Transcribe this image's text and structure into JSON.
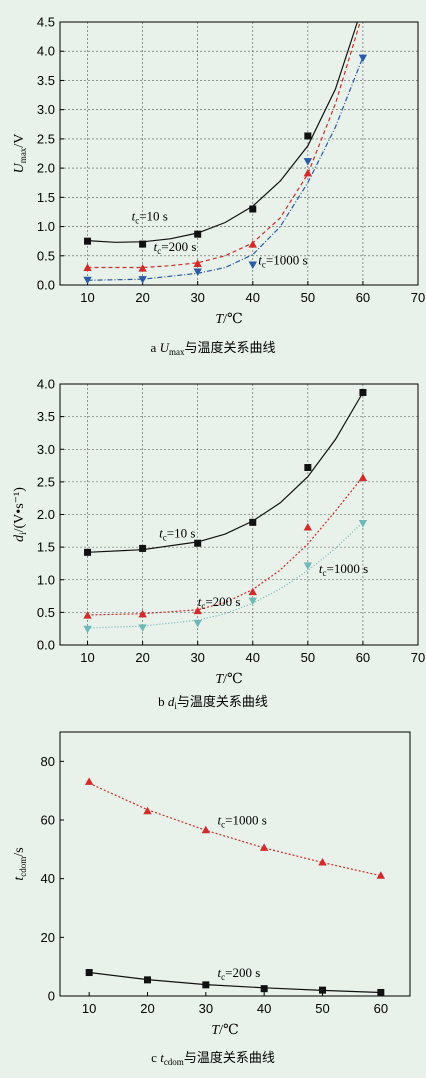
{
  "chart_data": [
    {
      "type": "scatter",
      "caption_prefix": "a",
      "caption_symbol": "U",
      "caption_sub": "max",
      "caption_text": "与温度关系曲线",
      "xlabel_italic": "T",
      "xlabel_rest": "/℃",
      "ylabel_italic": "U",
      "ylabel_sub": "max",
      "ylabel_rest": "/V",
      "xlim": [
        5,
        70
      ],
      "ylim": [
        0,
        4.5
      ],
      "xticks": [
        10,
        20,
        30,
        40,
        50,
        60,
        70
      ],
      "yticks": [
        0.0,
        0.5,
        1.0,
        1.5,
        2.0,
        2.5,
        3.0,
        3.5,
        4.0,
        4.5
      ],
      "ytick_decimals": 1,
      "grid": true,
      "series": [
        {
          "name": "tc=10 s",
          "label_italic": "t",
          "label_sub": "c",
          "label_rest": "=10 s",
          "marker": "square",
          "color": "#111111",
          "dash": "",
          "x": [
            10,
            20,
            30,
            40,
            50
          ],
          "y": [
            0.75,
            0.7,
            0.87,
            1.3,
            2.55
          ],
          "fit": [
            [
              10,
              0.76
            ],
            [
              15,
              0.73
            ],
            [
              20,
              0.74
            ],
            [
              25,
              0.79
            ],
            [
              30,
              0.89
            ],
            [
              35,
              1.07
            ],
            [
              40,
              1.35
            ],
            [
              45,
              1.78
            ],
            [
              50,
              2.38
            ],
            [
              55,
              3.35
            ],
            [
              59,
              4.5
            ]
          ]
        },
        {
          "name": "tc=200 s",
          "label_italic": "t",
          "label_sub": "c",
          "label_rest": "=200 s",
          "marker": "triangle-up",
          "color": "#d42a2a",
          "dash": "4,3",
          "x": [
            10,
            20,
            30,
            40,
            50
          ],
          "y": [
            0.29,
            0.28,
            0.36,
            0.69,
            1.91
          ],
          "fit": [
            [
              10,
              0.3
            ],
            [
              20,
              0.3
            ],
            [
              25,
              0.33
            ],
            [
              30,
              0.38
            ],
            [
              35,
              0.5
            ],
            [
              40,
              0.72
            ],
            [
              45,
              1.15
            ],
            [
              50,
              1.9
            ],
            [
              55,
              3.1
            ],
            [
              59.5,
              4.5
            ]
          ]
        },
        {
          "name": "tc=1000 s",
          "label_italic": "t",
          "label_sub": "c",
          "label_rest": "=1000 s",
          "marker": "triangle-down",
          "color": "#2a5aa8",
          "dash": "5,2,1,2",
          "x": [
            10,
            20,
            30,
            40,
            50,
            60
          ],
          "y": [
            0.09,
            0.1,
            0.23,
            0.35,
            2.12,
            3.89
          ],
          "fit": [
            [
              10,
              0.08
            ],
            [
              20,
              0.1
            ],
            [
              30,
              0.2
            ],
            [
              35,
              0.3
            ],
            [
              40,
              0.52
            ],
            [
              45,
              1.0
            ],
            [
              50,
              1.75
            ],
            [
              55,
              2.7
            ],
            [
              60,
              3.9
            ]
          ]
        }
      ],
      "annotations": [
        {
          "series": 0,
          "x": 18,
          "y": 1.1
        },
        {
          "series": 1,
          "x": 22,
          "y": 0.58
        },
        {
          "series": 2,
          "x": 41,
          "y": 0.35
        }
      ]
    },
    {
      "type": "scatter",
      "caption_prefix": "b",
      "caption_symbol": "d",
      "caption_sub": "i",
      "caption_text": "与温度关系曲线",
      "xlabel_italic": "T",
      "xlabel_rest": "/℃",
      "ylabel_italic": "d",
      "ylabel_sub": "i",
      "ylabel_rest": "/(V•s⁻¹)",
      "xlim": [
        5,
        70
      ],
      "ylim": [
        0,
        4.0
      ],
      "xticks": [
        10,
        20,
        30,
        40,
        50,
        60,
        70
      ],
      "yticks": [
        0.0,
        0.5,
        1.0,
        1.5,
        2.0,
        2.5,
        3.0,
        3.5,
        4.0
      ],
      "ytick_decimals": 1,
      "grid": true,
      "series": [
        {
          "name": "tc=10 s",
          "label_italic": "t",
          "label_sub": "c",
          "label_rest": "=10 s",
          "marker": "square",
          "color": "#111111",
          "dash": "",
          "x": [
            10,
            20,
            30,
            40,
            50,
            60
          ],
          "y": [
            1.42,
            1.48,
            1.56,
            1.88,
            2.72,
            3.87
          ],
          "fit": [
            [
              10,
              1.42
            ],
            [
              20,
              1.46
            ],
            [
              30,
              1.58
            ],
            [
              35,
              1.7
            ],
            [
              40,
              1.9
            ],
            [
              45,
              2.18
            ],
            [
              50,
              2.58
            ],
            [
              55,
              3.15
            ],
            [
              60,
              3.87
            ]
          ]
        },
        {
          "name": "tc=200 s",
          "label_italic": "t",
          "label_sub": "c",
          "label_rest": "=200 s",
          "marker": "triangle-up",
          "color": "#d42a2a",
          "dash": "2,2",
          "x": [
            10,
            20,
            30,
            40,
            50,
            60
          ],
          "y": [
            0.45,
            0.47,
            0.52,
            0.81,
            1.8,
            2.56
          ],
          "fit": [
            [
              10,
              0.46
            ],
            [
              20,
              0.48
            ],
            [
              30,
              0.54
            ],
            [
              35,
              0.65
            ],
            [
              40,
              0.85
            ],
            [
              45,
              1.15
            ],
            [
              50,
              1.55
            ],
            [
              55,
              2.05
            ],
            [
              60,
              2.58
            ]
          ]
        },
        {
          "name": "tc=1000 s",
          "label_italic": "t",
          "label_sub": "c",
          "label_rest": "=1000 s",
          "marker": "triangle-down",
          "color": "#6fb8b8",
          "dash": "1,2",
          "x": [
            10,
            20,
            30,
            40,
            50,
            60
          ],
          "y": [
            0.25,
            0.27,
            0.34,
            0.68,
            1.22,
            1.87
          ],
          "fit": [
            [
              10,
              0.26
            ],
            [
              20,
              0.29
            ],
            [
              30,
              0.38
            ],
            [
              35,
              0.48
            ],
            [
              40,
              0.64
            ],
            [
              45,
              0.86
            ],
            [
              50,
              1.14
            ],
            [
              55,
              1.48
            ],
            [
              60,
              1.88
            ]
          ]
        }
      ],
      "annotations": [
        {
          "series": 0,
          "x": 23,
          "y": 1.65
        },
        {
          "series": 1,
          "x": 30,
          "y": 0.6
        },
        {
          "series": 2,
          "x": 52,
          "y": 1.1
        }
      ]
    },
    {
      "type": "scatter",
      "caption_prefix": "c",
      "caption_symbol": "t",
      "caption_sub": "cdom",
      "caption_text": "与温度关系曲线",
      "xlabel_italic": "T",
      "xlabel_rest": "/℃",
      "ylabel_italic": "t",
      "ylabel_sub": "cdom",
      "ylabel_rest": "/s",
      "xlim": [
        5,
        65
      ],
      "ylim": [
        0,
        90
      ],
      "xticks": [
        10,
        20,
        30,
        40,
        50,
        60
      ],
      "yticks": [
        0,
        20,
        40,
        60,
        80
      ],
      "ytick_decimals": 0,
      "grid": false,
      "series": [
        {
          "name": "tc=200 s",
          "label_italic": "t",
          "label_sub": "c",
          "label_rest": "=200 s",
          "marker": "square",
          "color": "#111111",
          "dash": "",
          "x": [
            10,
            20,
            30,
            40,
            50,
            60
          ],
          "y": [
            8.0,
            5.5,
            3.8,
            2.5,
            2.0,
            1.2
          ],
          "fit": [
            [
              10,
              8.0
            ],
            [
              20,
              5.6
            ],
            [
              30,
              3.9
            ],
            [
              40,
              2.8
            ],
            [
              50,
              1.9
            ],
            [
              60,
              1.2
            ]
          ]
        },
        {
          "name": "tc=1000 s",
          "label_italic": "t",
          "label_sub": "c",
          "label_rest": "=1000 s",
          "marker": "triangle-up",
          "color": "#d42a2a",
          "dash": "2,2",
          "x": [
            10,
            20,
            30,
            40,
            50,
            60
          ],
          "y": [
            73.0,
            63.0,
            56.5,
            50.5,
            45.5,
            41.0
          ],
          "fit": [
            [
              10,
              72.5
            ],
            [
              20,
              63.5
            ],
            [
              30,
              56.5
            ],
            [
              40,
              50.5
            ],
            [
              50,
              45.5
            ],
            [
              60,
              41.0
            ]
          ]
        }
      ],
      "annotations": [
        {
          "series": 0,
          "x": 32,
          "y": 6.5
        },
        {
          "series": 1,
          "x": 32,
          "y": 58.5
        }
      ]
    }
  ]
}
